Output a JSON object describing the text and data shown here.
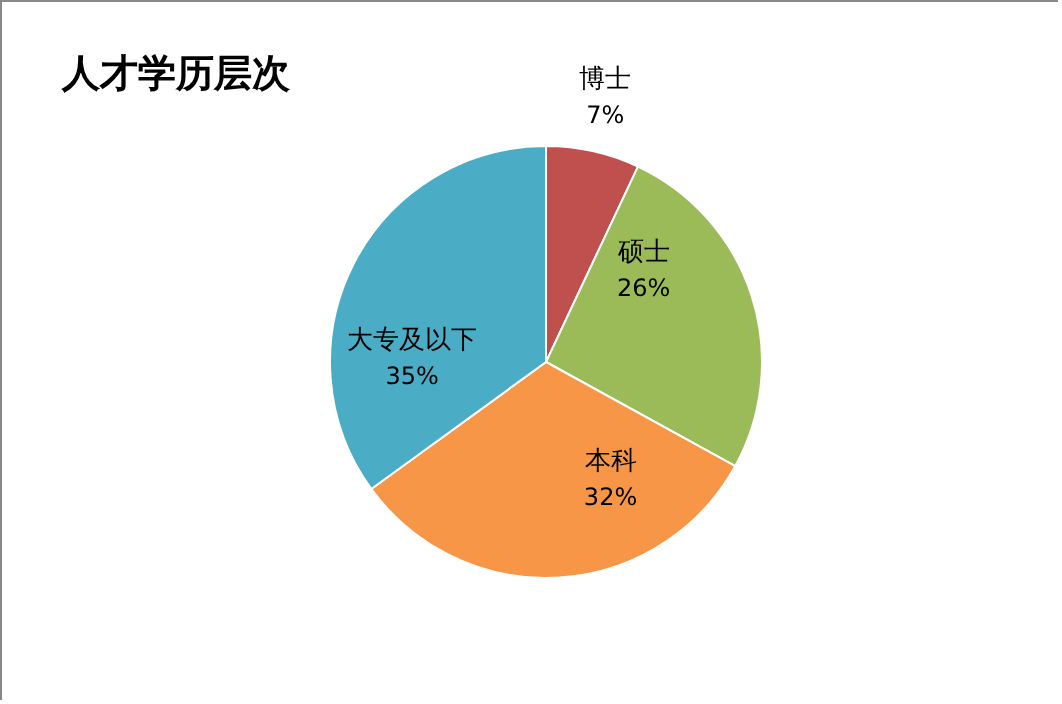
{
  "chart_data": {
    "type": "pie",
    "title": "人才学历层次",
    "categories": [
      "博士",
      "硕士",
      "本科",
      "大专及以下"
    ],
    "values": [
      7,
      26,
      32,
      35
    ],
    "colors": [
      "#c0504d",
      "#9bbb59",
      "#f79646",
      "#4bacc6"
    ],
    "value_labels": [
      "7%",
      "26%",
      "32%",
      "35%"
    ]
  }
}
